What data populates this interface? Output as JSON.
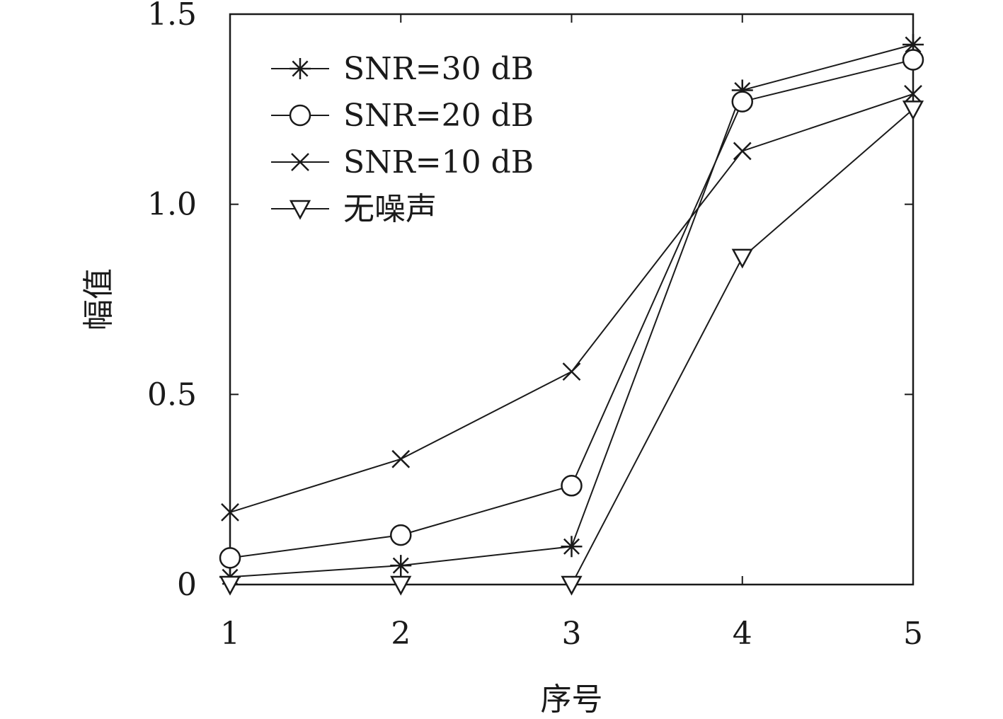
{
  "chart_data": {
    "type": "line",
    "xlabel": "序号",
    "ylabel": "幅值",
    "x": [
      1,
      2,
      3,
      4,
      5
    ],
    "xlim": [
      1,
      5
    ],
    "ylim": [
      0,
      1.5
    ],
    "xticks": [
      "1",
      "2",
      "3",
      "4",
      "5"
    ],
    "yticks": [
      {
        "value": 0,
        "label": "0"
      },
      {
        "value": 0.5,
        "label": "0.5"
      },
      {
        "value": 1.0,
        "label": "1.0"
      },
      {
        "value": 1.5,
        "label": "1.5"
      }
    ],
    "grid": false,
    "legend_position": "top-left",
    "line_color": "#1a1a1a",
    "series": [
      {
        "name": "SNR=30 dB",
        "marker": "asterisk",
        "values": [
          0.02,
          0.05,
          0.1,
          1.3,
          1.42
        ]
      },
      {
        "name": "SNR=20 dB",
        "marker": "circle",
        "values": [
          0.07,
          0.13,
          0.26,
          1.27,
          1.38
        ]
      },
      {
        "name": "SNR=10 dB",
        "marker": "cross",
        "values": [
          0.19,
          0.33,
          0.56,
          1.14,
          1.29
        ]
      },
      {
        "name": "无噪声",
        "marker": "triangle-down",
        "values": [
          0.0,
          0.0,
          0.0,
          0.86,
          1.25
        ]
      }
    ]
  }
}
